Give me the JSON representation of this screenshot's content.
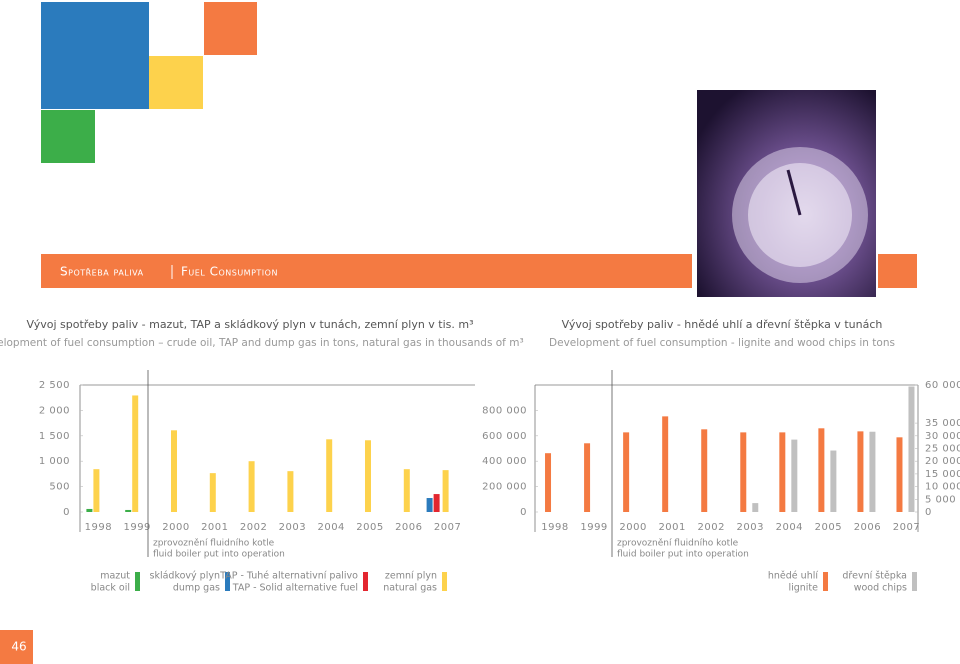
{
  "header": {
    "title_cs": "Spotřeba paliva",
    "title_en": "Fuel Consumption"
  },
  "page_number": "46",
  "chart_data": [
    {
      "type": "bar",
      "title": "Vývoj spotřeby paliv - mazut, TAP a skládkový plyn  v tunách, zemní plyn v tis. m³",
      "subtitle": "Development of fuel consumption – crude oil, TAP and dump gas in tons, natural gas in thousands of m³",
      "categories": [
        "1998",
        "1999",
        "2000",
        "2001",
        "2002",
        "2003",
        "2004",
        "2005",
        "2006",
        "2007"
      ],
      "annotation": [
        "zprovoznění fluidního kotle",
        "fluid boiler put into operation"
      ],
      "ylim": [
        0,
        2500
      ],
      "yticks": [
        0,
        500,
        {
          "value": 1000,
          "label": "1 000"
        },
        {
          "value": 1500,
          "label": "1 500"
        },
        {
          "value": 2000,
          "label": "2 000"
        },
        {
          "value": 2500,
          "label": "2 500"
        }
      ],
      "series": [
        {
          "name": "mazut",
          "name_en": "black oil",
          "color": "#3cae49",
          "values": [
            60,
            40,
            null,
            null,
            null,
            null,
            null,
            null,
            null,
            null
          ]
        },
        {
          "name": "skládkový plyn",
          "name_en": "dump gas",
          "color": "#2b7bbd",
          "values": [
            null,
            null,
            null,
            null,
            null,
            null,
            null,
            null,
            null,
            275
          ]
        },
        {
          "name": "TAP - Tuhé alternativní palivo",
          "name_en": "TAP - Solid alternative fuel",
          "color": "#e3262f",
          "values": [
            null,
            null,
            null,
            null,
            null,
            null,
            null,
            null,
            null,
            353
          ]
        },
        {
          "name": "zemní plyn",
          "name_en": "natural gas",
          "color": "#fdd24c",
          "values": [
            843,
            2294,
            1608,
            765,
            1000,
            804,
            1431,
            1412,
            843,
            824
          ]
        }
      ]
    },
    {
      "type": "bar",
      "title": "Vývoj spotřeby paliv - hnědé uhlí a dřevní štěpka v tunách",
      "subtitle": "Development of fuel consumption - lignite and wood chips in tons",
      "categories": [
        "1998",
        "1999",
        "2000",
        "2001",
        "2002",
        "2003",
        "2004",
        "2005",
        "2006",
        "2007"
      ],
      "annotation": [
        "zprovoznění fluidního kotle",
        "fluid boiler put into operation"
      ],
      "ylim": [
        0,
        1000000
      ],
      "yticks": [
        0,
        {
          "value": 200000,
          "label": "200 000"
        },
        {
          "value": 400000,
          "label": "400 000"
        },
        {
          "value": 600000,
          "label": "600 000"
        },
        {
          "value": 800000,
          "label": "800 000"
        }
      ],
      "y2lim": [
        0,
        60000
      ],
      "y2_axis_break": 35000,
      "y2ticks": [
        0,
        {
          "value": 5000,
          "label": "5 000"
        },
        {
          "value": 10000,
          "label": "10 000"
        },
        {
          "value": 15000,
          "label": "15 000"
        },
        {
          "value": 20000,
          "label": "20 000"
        },
        {
          "value": 25000,
          "label": "25 000"
        },
        {
          "value": 30000,
          "label": "30 000"
        },
        {
          "value": 35000,
          "label": "35 000"
        },
        {
          "value": 60000,
          "label": "60 000"
        }
      ],
      "series": [
        {
          "name": "hnědé uhlí",
          "name_en": "lignite",
          "color": "#f47a42",
          "values": [
            463000,
            541000,
            627000,
            753000,
            651000,
            627000,
            627000,
            659000,
            635000,
            588000
          ]
        },
        {
          "name": "dřevní štěpka",
          "name_en": "wood chips",
          "color": "#c0c0c0",
          "axis": "y2",
          "values": [
            null,
            null,
            null,
            null,
            null,
            3500,
            28500,
            24200,
            31600,
            59000
          ]
        }
      ]
    }
  ]
}
